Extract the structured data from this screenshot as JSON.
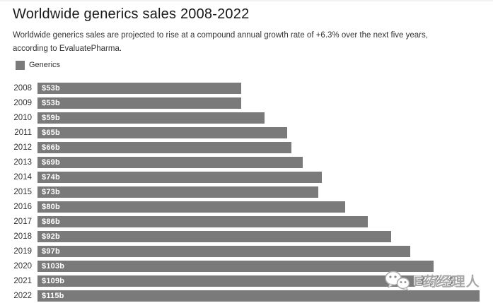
{
  "header": {
    "title": "Worldwide generics sales 2008-2022",
    "subtitle": "Worldwide generics sales are projected to rise at a compound annual growth rate of +6.3% over the next five years, according to EvaluatePharma."
  },
  "legend": {
    "label": "Generics",
    "color": "#7a7a7a"
  },
  "chart_data": {
    "type": "bar",
    "orientation": "horizontal",
    "title": "Worldwide generics sales 2008-2022",
    "series_name": "Generics",
    "categories": [
      "2008",
      "2009",
      "2010",
      "2011",
      "2012",
      "2013",
      "2014",
      "2015",
      "2016",
      "2017",
      "2018",
      "2019",
      "2020",
      "2021",
      "2022"
    ],
    "values": [
      53,
      53,
      59,
      65,
      66,
      69,
      74,
      73,
      80,
      86,
      92,
      97,
      103,
      109,
      115
    ],
    "value_labels": [
      "$53b",
      "$53b",
      "$59b",
      "$65b",
      "$66b",
      "$69b",
      "$74b",
      "$73b",
      "$80b",
      "$86b",
      "$92b",
      "$97b",
      "$103b",
      "$109b",
      "$115b"
    ],
    "unit": "billion USD",
    "xlim": [
      0,
      115
    ],
    "grid": false,
    "legend_position": "top-left",
    "bar_color": "#7a7a7a",
    "value_label_color": "#ffffff"
  },
  "watermark": {
    "text": "E药经理人",
    "icon": "wechat-icon",
    "color": "#a6a6a6"
  }
}
